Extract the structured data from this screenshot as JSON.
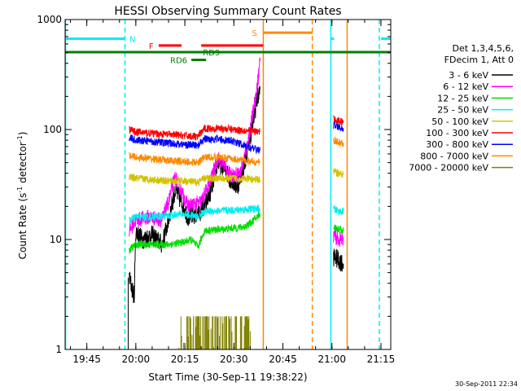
{
  "chart_data": {
    "type": "line",
    "title": "HESSI Observing Summary Count Rates",
    "xlabel": "Start Time (30-Sep-11 19:38:22)",
    "ylabel_main": "Count Rate (s",
    "ylabel_sup1": "-1",
    "ylabel_mid": " detector",
    "ylabel_sup2": "-1",
    "ylabel_end": ")",
    "y_scale": "log",
    "xlim": [
      "19:38:22",
      "21:18:00"
    ],
    "ylim": [
      1,
      1000
    ],
    "x_ticks": [
      "19:45",
      "20:00",
      "20:15",
      "20:30",
      "20:45",
      "21:00",
      "21:15"
    ],
    "y_ticks": [
      {
        "value": 1,
        "label": "1"
      },
      {
        "value": 10,
        "label": "10"
      },
      {
        "value": 100,
        "label": "100"
      },
      {
        "value": 1000,
        "label": "1000"
      }
    ],
    "legend": {
      "placement": "right",
      "header1": "Det 1,3,4,5,6,",
      "header2": "FDecim 1, Att 0",
      "entries": [
        {
          "label": "3 - 6 keV",
          "color": "#000000"
        },
        {
          "label": "6 - 12 keV",
          "color": "#ff00ff"
        },
        {
          "label": "12 - 25 keV",
          "color": "#00dd00"
        },
        {
          "label": "25 - 50 keV",
          "color": "#00eeee"
        },
        {
          "label": "50 - 100 keV",
          "color": "#d4c200"
        },
        {
          "label": "100 - 300 keV",
          "color": "#ff0000"
        },
        {
          "label": "300 - 800 keV",
          "color": "#0000ff"
        },
        {
          "label": "800 - 7000 keV",
          "color": "#ff8800"
        },
        {
          "label": "7000 - 20000 keV",
          "color": "#808000"
        }
      ]
    },
    "series": [
      {
        "name": "3 - 6 keV",
        "color": "#000000",
        "segments": [
          [
            [
              "19:58:00",
              4.5
            ],
            [
              "19:59:30",
              3
            ],
            [
              "20:00:00",
              12
            ],
            [
              "20:02:00",
              10
            ],
            [
              "20:05:00",
              11
            ],
            [
              "20:08:00",
              9
            ],
            [
              "20:10:00",
              15
            ],
            [
              "20:12:00",
              28
            ],
            [
              "20:14:00",
              22
            ],
            [
              "20:16:00",
              16
            ],
            [
              "20:19:00",
              17
            ],
            [
              "20:21:00",
              20
            ],
            [
              "20:23:00",
              28
            ],
            [
              "20:25:00",
              50
            ],
            [
              "20:27:00",
              45
            ],
            [
              "20:29:00",
              35
            ],
            [
              "20:31:00",
              30
            ],
            [
              "20:33:00",
              45
            ],
            [
              "20:35:00",
              85
            ],
            [
              "20:37:00",
              180
            ],
            [
              "20:38:00",
              230
            ]
          ],
          [
            [
              "21:00:30",
              7
            ],
            [
              "21:02:00",
              6.5
            ],
            [
              "21:03:30",
              6
            ]
          ]
        ]
      },
      {
        "name": "6 - 12 keV",
        "color": "#ff00ff",
        "segments": [
          [
            [
              "19:58:00",
              12
            ],
            [
              "20:00:00",
              15
            ],
            [
              "20:04:00",
              16
            ],
            [
              "20:08:00",
              15
            ],
            [
              "20:10:00",
              22
            ],
            [
              "20:12:00",
              37
            ],
            [
              "20:14:00",
              27
            ],
            [
              "20:16:00",
              20
            ],
            [
              "20:20:00",
              22
            ],
            [
              "20:23:00",
              35
            ],
            [
              "20:25:00",
              55
            ],
            [
              "20:27:00",
              48
            ],
            [
              "20:29:00",
              38
            ],
            [
              "20:32:00",
              40
            ],
            [
              "20:34:00",
              70
            ],
            [
              "20:36:00",
              150
            ],
            [
              "20:37:30",
              300
            ],
            [
              "20:38:00",
              420
            ]
          ],
          [
            [
              "21:00:30",
              11
            ],
            [
              "21:02:00",
              10
            ],
            [
              "21:03:30",
              10
            ]
          ]
        ]
      },
      {
        "name": "12 - 25 keV",
        "color": "#00dd00",
        "segments": [
          [
            [
              "19:58:00",
              8
            ],
            [
              "20:00:00",
              9
            ],
            [
              "20:10:00",
              9
            ],
            [
              "20:15:00",
              9.5
            ],
            [
              "20:17:00",
              10
            ],
            [
              "20:19:00",
              8.5
            ],
            [
              "20:21:00",
              12
            ],
            [
              "20:28:00",
              12.5
            ],
            [
              "20:33:00",
              13
            ],
            [
              "20:35:00",
              14
            ],
            [
              "20:38:00",
              17
            ]
          ],
          [
            [
              "21:00:30",
              13
            ],
            [
              "21:02:00",
              12.5
            ],
            [
              "21:03:30",
              12
            ]
          ]
        ]
      },
      {
        "name": "25 - 50 keV",
        "color": "#00eeee",
        "segments": [
          [
            [
              "19:58:00",
              15
            ],
            [
              "20:00:00",
              16
            ],
            [
              "20:05:00",
              16
            ],
            [
              "20:10:00",
              16.5
            ],
            [
              "20:15:00",
              17
            ],
            [
              "20:19:00",
              16
            ],
            [
              "20:21:00",
              18
            ],
            [
              "20:30:00",
              18.5
            ],
            [
              "20:36:00",
              19
            ],
            [
              "20:38:00",
              19
            ]
          ],
          [
            [
              "21:00:30",
              19
            ],
            [
              "21:02:00",
              18
            ],
            [
              "21:03:30",
              18
            ]
          ]
        ]
      },
      {
        "name": "50 - 100 keV",
        "color": "#d4c200",
        "segments": [
          [
            [
              "19:58:00",
              37
            ],
            [
              "20:00:00",
              36
            ],
            [
              "20:05:00",
              35
            ],
            [
              "20:10:00",
              34
            ],
            [
              "20:15:00",
              34
            ],
            [
              "20:19:00",
              33
            ],
            [
              "20:21:00",
              36
            ],
            [
              "20:30:00",
              36
            ],
            [
              "20:38:00",
              35
            ]
          ],
          [
            [
              "21:00:30",
              42
            ],
            [
              "21:02:00",
              40
            ],
            [
              "21:03:30",
              39
            ]
          ]
        ]
      },
      {
        "name": "100 - 300 keV",
        "color": "#ff0000",
        "segments": [
          [
            [
              "19:58:00",
              100
            ],
            [
              "20:00:00",
              95
            ],
            [
              "20:05:00",
              92
            ],
            [
              "20:10:00",
              90
            ],
            [
              "20:15:00",
              88
            ],
            [
              "20:19:00",
              86
            ],
            [
              "20:21:00",
              102
            ],
            [
              "20:25:00",
              103
            ],
            [
              "20:30:00",
              100
            ],
            [
              "20:35:00",
              97
            ],
            [
              "20:38:00",
              95
            ]
          ],
          [
            [
              "21:00:30",
              125
            ],
            [
              "21:02:00",
              120
            ],
            [
              "21:03:30",
              118
            ]
          ]
        ]
      },
      {
        "name": "300 - 800 keV",
        "color": "#0000ff",
        "segments": [
          [
            [
              "19:58:00",
              85
            ],
            [
              "20:00:00",
              80
            ],
            [
              "20:05:00",
              78
            ],
            [
              "20:10:00",
              75
            ],
            [
              "20:15:00",
              73
            ],
            [
              "20:19:00",
              72
            ],
            [
              "20:21:00",
              82
            ],
            [
              "20:25:00",
              82
            ],
            [
              "20:30:00",
              78
            ],
            [
              "20:35:00",
              68
            ],
            [
              "20:38:00",
              65
            ]
          ],
          [
            [
              "21:00:30",
              110
            ],
            [
              "21:02:00",
              105
            ],
            [
              "21:03:30",
              103
            ]
          ]
        ]
      },
      {
        "name": "800 - 7000 keV",
        "color": "#ff8800",
        "segments": [
          [
            [
              "19:58:00",
              58
            ],
            [
              "20:00:00",
              56
            ],
            [
              "20:05:00",
              54
            ],
            [
              "20:10:00",
              52
            ],
            [
              "20:15:00",
              51
            ],
            [
              "20:19:00",
              50
            ],
            [
              "20:21:00",
              56
            ],
            [
              "20:25:00",
              56
            ],
            [
              "20:30:00",
              54
            ],
            [
              "20:35:00",
              51
            ],
            [
              "20:38:00",
              50
            ]
          ],
          [
            [
              "21:00:30",
              80
            ],
            [
              "21:02:00",
              76
            ],
            [
              "21:03:30",
              75
            ]
          ]
        ]
      }
    ],
    "high_energy_bursts": {
      "name": "7000 - 20000 keV",
      "color": "#808000",
      "x_start": "20:13:00",
      "x_end": "20:35:00",
      "y_low": 1,
      "y_high": 2
    },
    "vertical_markers": [
      {
        "x": "19:38:30",
        "color": "#00eeee",
        "style": "solid"
      },
      {
        "x": "19:56:40",
        "color": "#00eeee",
        "style": "dashed"
      },
      {
        "x": "20:39:00",
        "color": "#ff8800",
        "style": "solid"
      },
      {
        "x": "20:54:00",
        "color": "#ff8800",
        "style": "dashed"
      },
      {
        "x": "20:59:40",
        "color": "#00eeee",
        "style": "solid"
      },
      {
        "x": "21:04:40",
        "color": "#ff8800",
        "style": "solid"
      },
      {
        "x": "21:14:30",
        "color": "#00eeee",
        "style": "dashed"
      }
    ],
    "flag_bars": [
      {
        "label": "N",
        "color": "#00eeee",
        "y": 670,
        "segments": [
          [
            "19:38:30",
            "19:56:40"
          ],
          [
            "20:59:40",
            "21:00:40"
          ],
          [
            "21:15:00",
            "21:18:00"
          ]
        ],
        "label_x": "19:58:00"
      },
      {
        "label": "F",
        "color": "#ff0000",
        "y": 580,
        "segments": [
          [
            "20:07:00",
            "20:14:00"
          ],
          [
            "20:20:00",
            "20:39:00"
          ]
        ],
        "label_x": "20:04:00"
      },
      {
        "label": "S",
        "color": "#ff8800",
        "y": 760,
        "segments": [
          [
            "20:39:00",
            "20:54:00"
          ]
        ],
        "label_x": "20:35:30"
      },
      {
        "label": "RD6",
        "color": "#008000",
        "y": 430,
        "segments": [
          [
            "20:17:00",
            "20:21:30"
          ]
        ],
        "label_x": "20:10:30"
      },
      {
        "label": "RD9",
        "color": "#008000",
        "y": 505,
        "segments": [
          [
            "19:38:22",
            "21:18:00"
          ]
        ],
        "label_x": "20:20:30"
      }
    ]
  },
  "timestamp": "30-Sep-2011 22:34"
}
